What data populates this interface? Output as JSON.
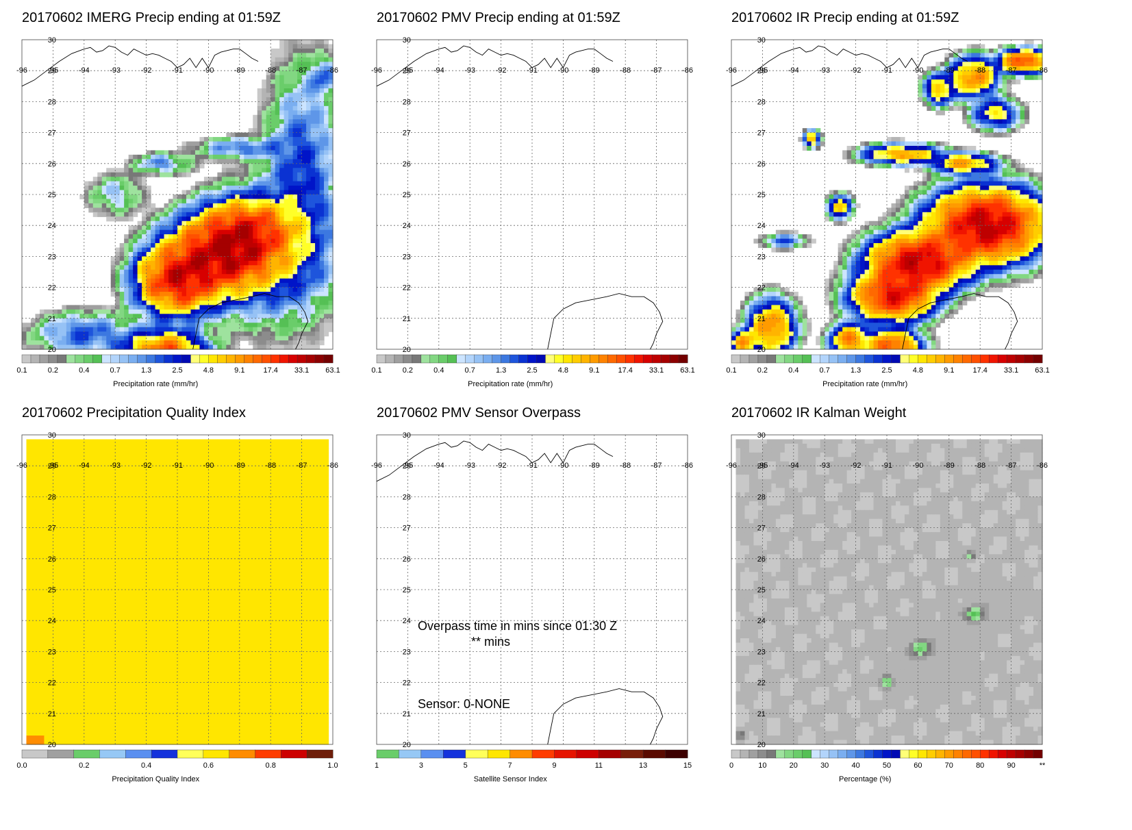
{
  "panels": [
    {
      "id": "imerg",
      "title": "20170602 IMERG Precip ending at 01:59Z",
      "colorbar": "precip",
      "field": "imerg",
      "coast_north": true,
      "coast_south": true
    },
    {
      "id": "pmv",
      "title": "20170602 PMV Precip ending at 01:59Z",
      "colorbar": "precip",
      "field": "none",
      "coast_north": true,
      "coast_south": true
    },
    {
      "id": "ir",
      "title": "20170602 IR Precip ending at 01:59Z",
      "colorbar": "precip",
      "field": "ir",
      "coast_north": true,
      "coast_south": true
    },
    {
      "id": "pqi",
      "title": "20170602 Precipitation Quality Index",
      "colorbar": "pqi",
      "field": "pqi",
      "coast_north": false,
      "coast_south": false
    },
    {
      "id": "sensor",
      "title": "20170602 PMV Sensor Overpass",
      "colorbar": "sensor",
      "field": "none",
      "coast_north": true,
      "coast_south": true,
      "overpass_text": "Overpass time in mins since 01:30 Z",
      "overpass_mins": "** mins",
      "sensor_text": "Sensor:   0-NONE"
    },
    {
      "id": "kalman",
      "title": "20170602 IR Kalman Weight",
      "colorbar": "kalman",
      "field": "kalman",
      "coast_north": false,
      "coast_south": false
    }
  ],
  "map": {
    "lon_labels": [
      "-96",
      "-95",
      "-94",
      "-93",
      "-92",
      "-91",
      "-90",
      "-89",
      "-88",
      "-87",
      "-86"
    ],
    "lat_labels": [
      "30",
      "29",
      "28",
      "27",
      "26",
      "25",
      "24",
      "23",
      "22",
      "21",
      "20"
    ],
    "lon_range": [
      -96,
      -86
    ],
    "lat_range": [
      20,
      30
    ]
  },
  "colorbars": {
    "precip": {
      "label": "Precipitation rate (mm/hr)",
      "ticks": [
        "0.1",
        "0.2",
        "0.4",
        "0.7",
        "1.3",
        "2.5",
        "4.8",
        "9.1",
        "17.4",
        "33.1",
        "63.1"
      ],
      "colors": [
        "#c8c8c8",
        "#b4b4b4",
        "#a0a0a0",
        "#8c8c8c",
        "#787878",
        "#9ee29e",
        "#82d782",
        "#6acd6a",
        "#55c055",
        "#cce4ff",
        "#b2d4fb",
        "#96c2f5",
        "#7aaef0",
        "#5e96e8",
        "#3c78e0",
        "#1e55dc",
        "#0a32d2",
        "#0014c8",
        "#000ab4",
        "#ffff78",
        "#ffff28",
        "#ffe600",
        "#ffcd00",
        "#ffb400",
        "#ff9b00",
        "#ff8200",
        "#ff6900",
        "#ff5000",
        "#ff3200",
        "#f01400",
        "#d70000",
        "#be0000",
        "#a50000",
        "#8c0000",
        "#730000"
      ]
    },
    "pqi": {
      "label": "Precipitation Quality Index",
      "ticks": [
        "0.0",
        "0.2",
        "0.4",
        "0.6",
        "0.8",
        "1.0"
      ],
      "colors": [
        "#c8c8c8",
        "#a0a0a0",
        "#6acd6a",
        "#96c8f5",
        "#5a8ff0",
        "#1432dc",
        "#ffff5a",
        "#ffe600",
        "#ff8c00",
        "#ff3c00",
        "#cd0000",
        "#6e1e0a"
      ]
    },
    "sensor": {
      "label": "Satellite Sensor Index",
      "ticks": [
        "1",
        "3",
        "5",
        "7",
        "9",
        "11",
        "13",
        "15"
      ],
      "colors": [
        "#6acd6a",
        "#96c8f5",
        "#5a8ff0",
        "#1432dc",
        "#ffff5a",
        "#ffe600",
        "#ff8c00",
        "#ff3c00",
        "#e61400",
        "#cd0000",
        "#a50000",
        "#781e0a",
        "#5a0a00",
        "#3c0000"
      ]
    },
    "kalman": {
      "label": "Percentage (%)",
      "ticks": [
        "0",
        "10",
        "20",
        "30",
        "40",
        "50",
        "60",
        "70",
        "80",
        "90",
        "**"
      ],
      "colors": [
        "#c8c8c8",
        "#b4b4b4",
        "#a0a0a0",
        "#8c8c8c",
        "#787878",
        "#9ee29e",
        "#82d782",
        "#6acd6a",
        "#55c055",
        "#cce4ff",
        "#b2d4fb",
        "#96c2f5",
        "#7aaef0",
        "#5e96e8",
        "#3c78e0",
        "#1e55dc",
        "#0a32d2",
        "#0014c8",
        "#000ab4",
        "#ffff78",
        "#ffff28",
        "#ffe600",
        "#ffcd00",
        "#ffb400",
        "#ff9b00",
        "#ff8200",
        "#ff6900",
        "#ff5000",
        "#ff3200",
        "#f01400",
        "#d70000",
        "#be0000",
        "#a50000",
        "#8c0000",
        "#730000"
      ]
    }
  },
  "chart_data": [
    {
      "type": "heatmap",
      "title": "20170602 IMERG Precip ending at 01:59Z",
      "x_range": [
        -96,
        -86
      ],
      "y_range": [
        20,
        30
      ],
      "colorbar_label": "Precipitation rate (mm/hr)",
      "max_rate_approx": 17.4
    },
    {
      "type": "heatmap",
      "title": "20170602 PMV Precip ending at 01:59Z",
      "x_range": [
        -96,
        -86
      ],
      "y_range": [
        20,
        30
      ],
      "colorbar_label": "Precipitation rate (mm/hr)",
      "max_rate_approx": 0
    },
    {
      "type": "heatmap",
      "title": "20170602 IR Precip ending at 01:59Z",
      "x_range": [
        -96,
        -86
      ],
      "y_range": [
        20,
        30
      ],
      "colorbar_label": "Precipitation rate (mm/hr)",
      "max_rate_approx": 17.4
    },
    {
      "type": "heatmap",
      "title": "20170602 Precipitation Quality Index",
      "x_range": [
        -96,
        -86
      ],
      "y_range": [
        20,
        30
      ],
      "colorbar_label": "Precipitation Quality Index",
      "dominant_value": 0.65
    },
    {
      "type": "heatmap",
      "title": "20170602 PMV Sensor Overpass",
      "x_range": [
        -96,
        -86
      ],
      "y_range": [
        20,
        30
      ],
      "colorbar_label": "Satellite Sensor Index"
    },
    {
      "type": "heatmap",
      "title": "20170602 IR Kalman Weight",
      "x_range": [
        -96,
        -86
      ],
      "y_range": [
        20,
        30
      ],
      "colorbar_label": "Percentage (%)",
      "dominant_value_percent": 5
    }
  ]
}
